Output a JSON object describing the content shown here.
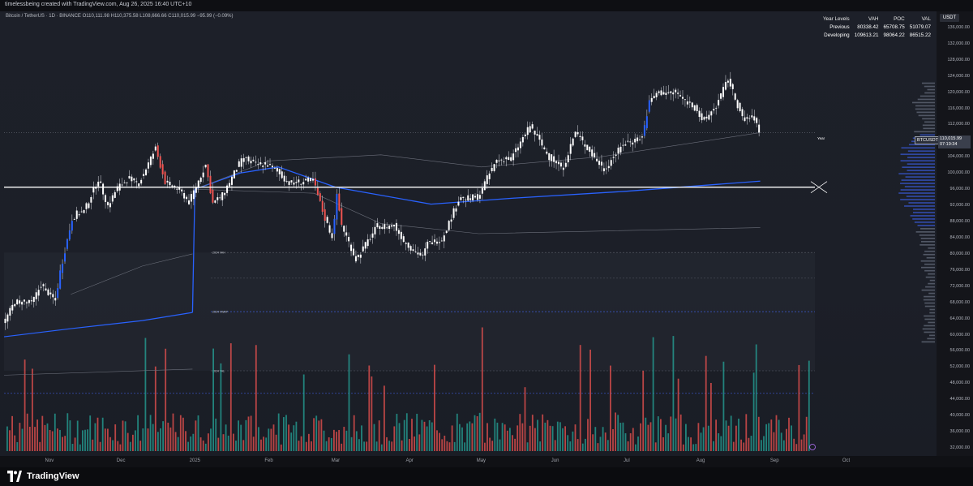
{
  "header": {
    "text": "timelessbeing created with TradingView.com, Aug 26, 2025 16:40 UTC+10"
  },
  "symbol_line": "Bitcoin / TetherUS · 1D · BINANCE  O110,111.98  H110,375.58  L108,666.66  C110,015.99  −95.99 (−0.09%)",
  "currency": "USDT",
  "levels_table": {
    "headers": [
      "Year Levels",
      "VAH",
      "POC",
      "VAL"
    ],
    "rows": [
      [
        "Previous",
        "80338.42",
        "65708.75",
        "51079.07"
      ],
      [
        "Developing",
        "109613.21",
        "98064.22",
        "86515.22"
      ]
    ]
  },
  "price_tag": {
    "symbol": "BTCUSDT",
    "price": "110,015.99",
    "countdown": "07:19:34"
  },
  "year_label": "Year",
  "level_labels": [
    "2024 VAH",
    "2024 VWAP",
    "2024 VAL"
  ],
  "footer": {
    "brand": "TradingView"
  },
  "colors": {
    "up": "#26a69a",
    "down": "#ef5350",
    "candle_up": "#ffffff",
    "candle_down": "#ffffff",
    "blue": "#2962ff",
    "background": "#1d2029"
  },
  "chart_data": {
    "type": "candlestick",
    "price_axis": {
      "ylim": [
        30000,
        140000
      ],
      "ticks": [
        {
          "value": 136000,
          "label": "136,000.00"
        },
        {
          "value": 132000,
          "label": "132,000.00"
        },
        {
          "value": 128000,
          "label": "128,000.00"
        },
        {
          "value": 124000,
          "label": "124,000.00"
        },
        {
          "value": 120000,
          "label": "120,000.00"
        },
        {
          "value": 116000,
          "label": "116,000.00"
        },
        {
          "value": 112000,
          "label": "112,000.00"
        },
        {
          "value": 108000,
          "label": "108,000.00"
        },
        {
          "value": 104000,
          "label": "104,000.00"
        },
        {
          "value": 100000,
          "label": "100,000.00"
        },
        {
          "value": 96000,
          "label": "96,000.00"
        },
        {
          "value": 92000,
          "label": "92,000.00"
        },
        {
          "value": 88000,
          "label": "88,000.00"
        },
        {
          "value": 84000,
          "label": "84,000.00"
        },
        {
          "value": 80000,
          "label": "80,000.00"
        },
        {
          "value": 76000,
          "label": "76,000.00"
        },
        {
          "value": 72000,
          "label": "72,000.00"
        },
        {
          "value": 68000,
          "label": "68,000.00"
        },
        {
          "value": 64000,
          "label": "64,000.00"
        },
        {
          "value": 60000,
          "label": "60,000.00"
        },
        {
          "value": 56000,
          "label": "56,000.00"
        },
        {
          "value": 52000,
          "label": "52,000.00"
        },
        {
          "value": 48000,
          "label": "48,000.00"
        },
        {
          "value": 44000,
          "label": "44,000.00"
        },
        {
          "value": 40000,
          "label": "40,000.00"
        },
        {
          "value": 36000,
          "label": "36,000.00"
        },
        {
          "value": 32000,
          "label": "32,000.00"
        }
      ]
    },
    "time_axis": {
      "start": "2024-10-13",
      "end": "2025-10-27",
      "ticks": [
        {
          "date": "2024-11-01",
          "label": "Nov"
        },
        {
          "date": "2024-12-01",
          "label": "Dec"
        },
        {
          "date": "2025-01-01",
          "label": "2025"
        },
        {
          "date": "2025-02-01",
          "label": "Feb"
        },
        {
          "date": "2025-03-01",
          "label": "Mar"
        },
        {
          "date": "2025-04-01",
          "label": "Apr"
        },
        {
          "date": "2025-05-01",
          "label": "May"
        },
        {
          "date": "2025-06-01",
          "label": "Jun"
        },
        {
          "date": "2025-07-01",
          "label": "Jul"
        },
        {
          "date": "2025-08-01",
          "label": "Aug"
        },
        {
          "date": "2025-09-01",
          "label": "Sep"
        },
        {
          "date": "2025-10-01",
          "label": "Oct"
        }
      ]
    },
    "close_path": [
      {
        "date": "2024-10-13",
        "close": 62500
      },
      {
        "date": "2024-10-18",
        "close": 68200
      },
      {
        "date": "2024-10-25",
        "close": 67800
      },
      {
        "date": "2024-10-29",
        "close": 72300
      },
      {
        "date": "2024-11-04",
        "close": 68400
      },
      {
        "date": "2024-11-06",
        "close": 75600
      },
      {
        "date": "2024-11-11",
        "close": 88700
      },
      {
        "date": "2024-11-13",
        "close": 90000
      },
      {
        "date": "2024-11-16",
        "close": 90500
      },
      {
        "date": "2024-11-22",
        "close": 98500
      },
      {
        "date": "2024-11-26",
        "close": 91900
      },
      {
        "date": "2024-11-30",
        "close": 96400
      },
      {
        "date": "2024-12-05",
        "close": 98700
      },
      {
        "date": "2024-12-09",
        "close": 97400
      },
      {
        "date": "2024-12-16",
        "close": 106100
      },
      {
        "date": "2024-12-20",
        "close": 97800
      },
      {
        "date": "2024-12-26",
        "close": 95800
      },
      {
        "date": "2024-12-30",
        "close": 92800
      },
      {
        "date": "2025-01-06",
        "close": 102000
      },
      {
        "date": "2025-01-09",
        "close": 92500
      },
      {
        "date": "2025-01-13",
        "close": 94500
      },
      {
        "date": "2025-01-20",
        "close": 102200
      },
      {
        "date": "2025-01-22",
        "close": 103700
      },
      {
        "date": "2025-01-27",
        "close": 102100
      },
      {
        "date": "2025-01-31",
        "close": 102400
      },
      {
        "date": "2025-02-03",
        "close": 101400
      },
      {
        "date": "2025-02-10",
        "close": 97500
      },
      {
        "date": "2025-02-20",
        "close": 98300
      },
      {
        "date": "2025-02-25",
        "close": 88700
      },
      {
        "date": "2025-02-28",
        "close": 84300
      },
      {
        "date": "2025-03-02",
        "close": 94200
      },
      {
        "date": "2025-03-04",
        "close": 87200
      },
      {
        "date": "2025-03-10",
        "close": 78600
      },
      {
        "date": "2025-03-19",
        "close": 86900
      },
      {
        "date": "2025-03-26",
        "close": 86900
      },
      {
        "date": "2025-03-31",
        "close": 82500
      },
      {
        "date": "2025-04-07",
        "close": 79200
      },
      {
        "date": "2025-04-09",
        "close": 82600
      },
      {
        "date": "2025-04-15",
        "close": 83600
      },
      {
        "date": "2025-04-22",
        "close": 93400
      },
      {
        "date": "2025-04-30",
        "close": 94200
      },
      {
        "date": "2025-05-08",
        "close": 103200
      },
      {
        "date": "2025-05-14",
        "close": 103500
      },
      {
        "date": "2025-05-22",
        "close": 111700
      },
      {
        "date": "2025-05-30",
        "close": 103900
      },
      {
        "date": "2025-06-05",
        "close": 101500
      },
      {
        "date": "2025-06-10",
        "close": 110200
      },
      {
        "date": "2025-06-17",
        "close": 104500
      },
      {
        "date": "2025-06-22",
        "close": 100900
      },
      {
        "date": "2025-06-30",
        "close": 107100
      },
      {
        "date": "2025-07-08",
        "close": 108900
      },
      {
        "date": "2025-07-11",
        "close": 117500
      },
      {
        "date": "2025-07-14",
        "close": 119800
      },
      {
        "date": "2025-07-22",
        "close": 119900
      },
      {
        "date": "2025-07-31",
        "close": 115700
      },
      {
        "date": "2025-08-02",
        "close": 112500
      },
      {
        "date": "2025-08-08",
        "close": 116600
      },
      {
        "date": "2025-08-13",
        "close": 123300
      },
      {
        "date": "2025-08-19",
        "close": 113500
      },
      {
        "date": "2025-08-24",
        "close": 113600
      },
      {
        "date": "2025-08-26",
        "close": 110015.99
      }
    ],
    "levels": [
      {
        "name": "Previous VAH",
        "value": 80338.42
      },
      {
        "name": "Previous POC",
        "value": 65708.75
      },
      {
        "name": "Previous VAL",
        "value": 51079.07
      },
      {
        "name": "Developing VAH",
        "value": 109613.21
      },
      {
        "name": "Developing POC",
        "value": 98064.22
      },
      {
        "name": "Developing VAL",
        "value": 86515.22
      },
      {
        "name": "Horizontal",
        "value": 96500
      }
    ],
    "last_price": 110015.99
  }
}
